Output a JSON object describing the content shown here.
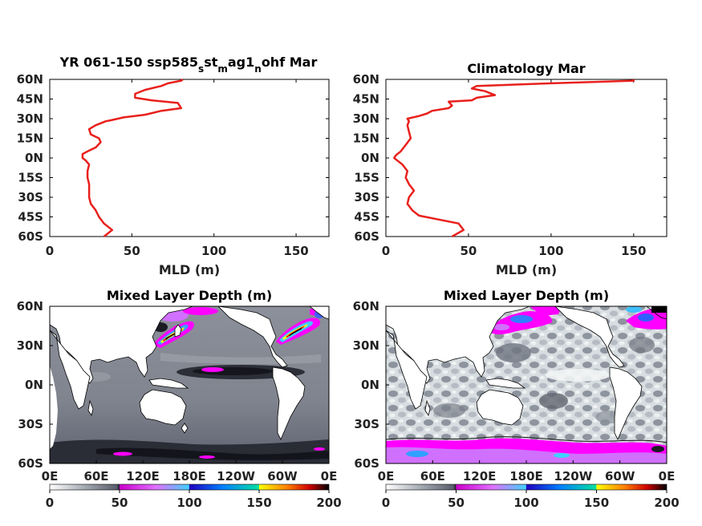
{
  "chart_data": [
    {
      "type": "line",
      "title": "YR 061-150 ssp585_s st_m ag1_n ohf Mar",
      "title_parts": [
        "YR 061-150 ssp585",
        "s",
        "st",
        "m",
        "ag1",
        "n",
        "ohf Mar"
      ],
      "xlabel": "MLD (m)",
      "ylabel": "",
      "xlim": [
        0,
        170
      ],
      "ylim": [
        -60,
        60
      ],
      "xticks": [
        "0",
        "50",
        "100",
        "150"
      ],
      "yticks": [
        "60N",
        "45N",
        "30N",
        "15N",
        "0N",
        "15S",
        "30S",
        "45S",
        "60S"
      ],
      "series": [
        {
          "color": "#e8201c",
          "x": [
            33,
            38,
            33,
            30,
            28,
            25,
            24,
            24,
            24,
            23,
            23,
            24,
            22,
            20,
            20,
            23,
            28,
            31,
            30,
            25,
            24,
            28,
            34,
            38,
            45,
            58,
            68,
            80,
            78,
            62,
            52,
            52,
            58,
            68,
            72,
            80,
            81
          ],
          "y": [
            -60,
            -55,
            -50,
            -45,
            -40,
            -35,
            -30,
            -25,
            -20,
            -15,
            -10,
            -5,
            -2,
            0,
            3,
            5,
            8,
            12,
            15,
            18,
            22,
            25,
            28,
            29,
            31,
            33,
            36,
            38,
            42,
            44,
            46,
            49,
            52,
            55,
            57,
            59,
            60
          ]
        }
      ]
    },
    {
      "type": "line",
      "title": "Climatology Mar",
      "xlabel": "MLD (m)",
      "ylabel": "",
      "xlim": [
        0,
        170
      ],
      "ylim": [
        -60,
        60
      ],
      "xticks": [
        "0",
        "50",
        "100",
        "150"
      ],
      "yticks": [
        "60N",
        "45N",
        "30N",
        "15N",
        "0N",
        "15S",
        "30S",
        "45S",
        "60S"
      ],
      "series": [
        {
          "color": "#e8201c",
          "x": [
            40,
            47,
            44,
            32,
            20,
            16,
            13,
            14,
            17,
            14,
            12,
            13,
            10,
            7,
            5,
            6,
            9,
            12,
            15,
            14,
            13,
            14,
            13,
            20,
            25,
            28,
            38,
            40,
            38,
            52,
            55,
            66,
            60,
            52,
            55,
            100,
            150,
            150
          ],
          "y": [
            -60,
            -55,
            -50,
            -47,
            -44,
            -40,
            -35,
            -30,
            -25,
            -20,
            -15,
            -10,
            -5,
            -2,
            0,
            2,
            5,
            10,
            15,
            20,
            25,
            28,
            30,
            32,
            34,
            36,
            38,
            40,
            43,
            44,
            46,
            48,
            51,
            53,
            55,
            57,
            59,
            60
          ]
        }
      ]
    },
    {
      "type": "heatmap",
      "title": "Mixed Layer Depth (m)",
      "xticks": [
        "0E",
        "60E",
        "120E",
        "180E",
        "120W",
        "60W",
        "0E"
      ],
      "yticks": [
        "60N",
        "30N",
        "0N",
        "30S",
        "60S"
      ],
      "colorbar_ticks": [
        "0",
        "50",
        "100",
        "150",
        "200"
      ],
      "colorbar_range": [
        0,
        200
      ],
      "features": [
        "Kuroshio deep MLD band 0-45N 130-170E",
        "Gulf Stream deep MLD band 35-45N 60-80W",
        "equatorial Pacific tongue 0N 150E-120W",
        "Southern Ocean band 55S"
      ]
    },
    {
      "type": "heatmap",
      "title": "Mixed Layer Depth (m)",
      "xticks": [
        "0E",
        "60E",
        "120E",
        "180E",
        "120W",
        "60W",
        "0E"
      ],
      "yticks": [
        "60N",
        "30N",
        "0N",
        "30S",
        "60S"
      ],
      "colorbar_ticks": [
        "0",
        "50",
        "100",
        "150",
        "200"
      ],
      "colorbar_range": [
        0,
        200
      ],
      "features": [
        "patchy light-grey mid-latitude field",
        "magenta North Pacific band 45-60N",
        "magenta North Atlantic band 45-60N",
        "magenta Southern Ocean band 50-60S"
      ]
    }
  ],
  "colors": {
    "line": "#e8201c",
    "land": "#ffffff",
    "colorbar": [
      "#ffffff",
      "#9aa0aa",
      "#505060",
      "#151520",
      "#ff00ff",
      "#d070ff",
      "#20c0ff",
      "#0040ff",
      "#00c080",
      "#ffff00",
      "#ff8000",
      "#ff2000",
      "#8b0000",
      "#000000"
    ]
  }
}
